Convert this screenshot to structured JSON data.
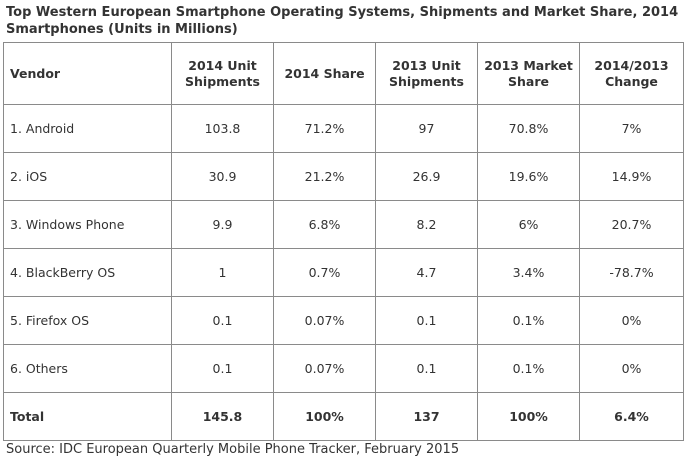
{
  "title": "Top Western European Smartphone Operating Systems, Shipments and Market Share, 2014 Smartphones (Units in Millions)",
  "source": "Source: IDC European Quarterly Mobile Phone Tracker, February 2015",
  "chart_data": {
    "type": "table",
    "title": "Top Western European Smartphone Operating Systems, Shipments and Market Share, 2014 Smartphones (Units in Millions)",
    "columns": [
      "Vendor",
      "2014 Unit Shipments",
      "2014 Share",
      "2013 Unit Shipments",
      "2013 Market Share",
      "2014/2013 Change"
    ],
    "rows": [
      [
        "1. Android",
        "103.8",
        "71.2%",
        "97",
        "70.8%",
        "7%"
      ],
      [
        "2. iOS",
        "30.9",
        "21.2%",
        "26.9",
        "19.6%",
        "14.9%"
      ],
      [
        "3. Windows Phone",
        "9.9",
        "6.8%",
        "8.2",
        "6%",
        "20.7%"
      ],
      [
        "4. BlackBerry OS",
        "1",
        "0.7%",
        "4.7",
        "3.4%",
        "-78.7%"
      ],
      [
        "5. Firefox OS",
        "0.1",
        "0.07%",
        "0.1",
        "0.1%",
        "0%"
      ],
      [
        "6. Others",
        "0.1",
        "0.07%",
        "0.1",
        "0.1%",
        "0%"
      ]
    ],
    "total": [
      "Total",
      "145.8",
      "100%",
      "137",
      "100%",
      "6.4%"
    ],
    "source": "Source: IDC European Quarterly Mobile Phone Tracker, February 2015"
  }
}
